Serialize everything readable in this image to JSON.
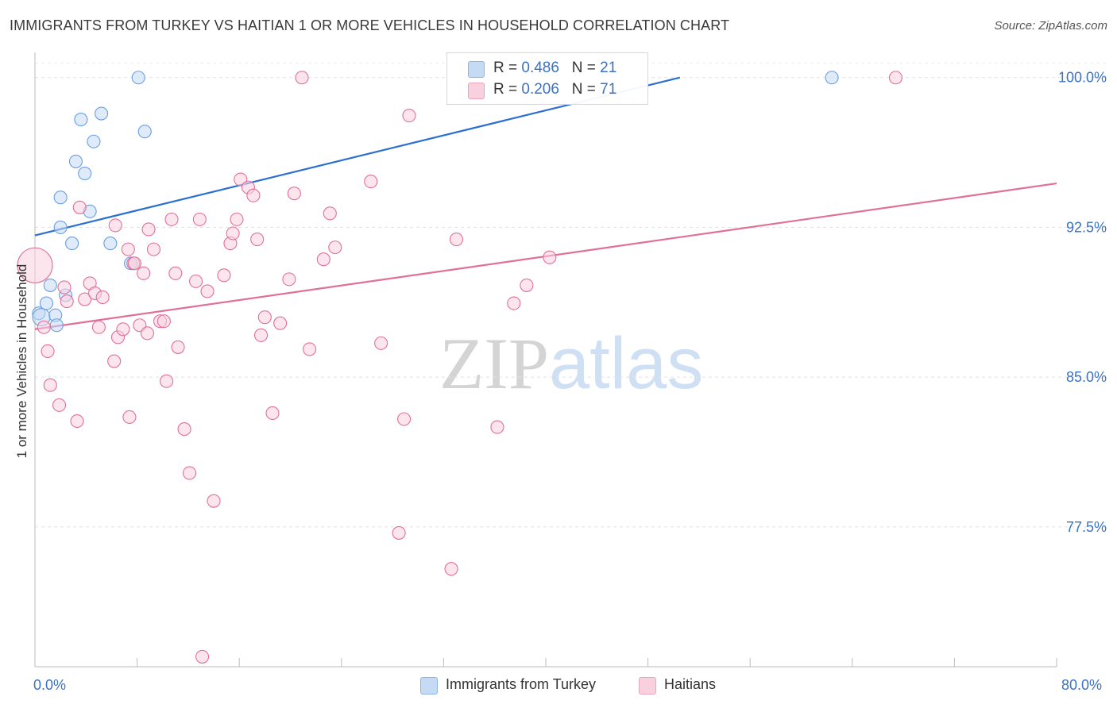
{
  "title": "IMMIGRANTS FROM TURKEY VS HAITIAN 1 OR MORE VEHICLES IN HOUSEHOLD CORRELATION CHART",
  "source": "Source: ZipAtlas.com",
  "watermark": {
    "zip": "ZIP",
    "atlas": "atlas"
  },
  "legend": {
    "rows": [
      {
        "r_label": "R = ",
        "r_value": "0.486",
        "n_label": "N = ",
        "n_value": "21",
        "color": "#a9c8f0"
      },
      {
        "r_label": "R = ",
        "r_value": "0.206",
        "n_label": "N = ",
        "n_value": "71",
        "color": "#f7b8cc"
      }
    ]
  },
  "bottom_legend": {
    "items": [
      {
        "label": "Immigrants from Turkey",
        "color": "#a9c8f0"
      },
      {
        "label": "Haitians",
        "color": "#f7b8cc"
      }
    ]
  },
  "chart_data": {
    "type": "scatter",
    "title": "IMMIGRANTS FROM TURKEY VS HAITIAN 1 OR MORE VEHICLES IN HOUSEHOLD CORRELATION CHART",
    "xlabel": "",
    "ylabel": "1 or more Vehicles in Household",
    "xlim": [
      0,
      80
    ],
    "ylim": [
      70.5,
      101.5
    ],
    "x_tick_labels": [
      "0.0%",
      "80.0%"
    ],
    "y_ticks": [
      77.5,
      85.0,
      92.5,
      100.0
    ],
    "y_tick_labels": [
      "77.5%",
      "85.0%",
      "92.5%",
      "100.0%"
    ],
    "grid": true,
    "legend_position": "top-center",
    "series": [
      {
        "name": "Immigrants from Turkey",
        "color": "#6a9fe0",
        "fill": "#c5daf5",
        "r": 0.486,
        "n": 21,
        "trend": {
          "x": [
            0.0,
            50.5
          ],
          "y": [
            92.1,
            100.0
          ]
        },
        "points": [
          [
            0.3,
            88.2
          ],
          [
            0.5,
            88.0
          ],
          [
            0.9,
            88.7
          ],
          [
            1.2,
            89.6
          ],
          [
            1.6,
            88.1
          ],
          [
            1.7,
            87.6
          ],
          [
            2.0,
            92.5
          ],
          [
            2.0,
            94.0
          ],
          [
            2.4,
            89.1
          ],
          [
            2.9,
            91.7
          ],
          [
            3.2,
            95.8
          ],
          [
            3.6,
            97.9
          ],
          [
            3.9,
            95.2
          ],
          [
            4.3,
            93.3
          ],
          [
            4.6,
            96.8
          ],
          [
            5.2,
            98.2
          ],
          [
            5.9,
            91.7
          ],
          [
            7.5,
            90.7
          ],
          [
            8.1,
            100.0
          ],
          [
            8.6,
            97.3
          ],
          [
            62.4,
            100.0
          ]
        ]
      },
      {
        "name": "Haitians",
        "color": "#e0709a",
        "fill": "#f9d0de",
        "r": 0.206,
        "n": 71,
        "trend": {
          "x": [
            0.0,
            80.0
          ],
          "y": [
            87.4,
            94.7
          ]
        },
        "points": [
          [
            0.0,
            90.6
          ],
          [
            0.7,
            87.5
          ],
          [
            1.0,
            86.3
          ],
          [
            1.2,
            84.6
          ],
          [
            1.9,
            83.6
          ],
          [
            2.3,
            89.5
          ],
          [
            2.5,
            88.8
          ],
          [
            3.3,
            82.8
          ],
          [
            3.5,
            93.5
          ],
          [
            3.9,
            88.9
          ],
          [
            4.3,
            89.7
          ],
          [
            4.7,
            89.2
          ],
          [
            5.0,
            87.5
          ],
          [
            5.3,
            89.0
          ],
          [
            6.2,
            85.8
          ],
          [
            6.3,
            92.6
          ],
          [
            6.5,
            87.0
          ],
          [
            6.9,
            87.4
          ],
          [
            7.3,
            91.4
          ],
          [
            7.4,
            83.0
          ],
          [
            7.7,
            90.7
          ],
          [
            8.2,
            87.6
          ],
          [
            8.5,
            90.2
          ],
          [
            8.8,
            87.2
          ],
          [
            8.9,
            92.4
          ],
          [
            9.3,
            91.4
          ],
          [
            9.8,
            87.8
          ],
          [
            10.1,
            87.8
          ],
          [
            10.3,
            84.8
          ],
          [
            10.7,
            92.9
          ],
          [
            11.0,
            90.2
          ],
          [
            11.2,
            86.5
          ],
          [
            11.7,
            82.4
          ],
          [
            12.1,
            80.2
          ],
          [
            12.6,
            89.8
          ],
          [
            12.9,
            92.9
          ],
          [
            13.5,
            89.3
          ],
          [
            14.0,
            78.8
          ],
          [
            14.8,
            90.1
          ],
          [
            15.3,
            91.7
          ],
          [
            15.5,
            92.2
          ],
          [
            15.8,
            92.9
          ],
          [
            16.1,
            94.9
          ],
          [
            16.7,
            94.5
          ],
          [
            17.1,
            94.1
          ],
          [
            17.4,
            91.9
          ],
          [
            17.7,
            87.1
          ],
          [
            18.0,
            88.0
          ],
          [
            18.6,
            83.2
          ],
          [
            19.2,
            87.7
          ],
          [
            19.9,
            89.9
          ],
          [
            20.3,
            94.2
          ],
          [
            20.9,
            100.0
          ],
          [
            21.5,
            86.4
          ],
          [
            22.6,
            90.9
          ],
          [
            23.1,
            93.2
          ],
          [
            23.5,
            91.5
          ],
          [
            26.3,
            94.8
          ],
          [
            27.1,
            86.7
          ],
          [
            28.5,
            77.2
          ],
          [
            28.9,
            82.9
          ],
          [
            29.3,
            98.1
          ],
          [
            32.6,
            75.4
          ],
          [
            33.0,
            91.9
          ],
          [
            36.2,
            82.5
          ],
          [
            37.5,
            88.7
          ],
          [
            38.5,
            89.6
          ],
          [
            40.3,
            91.0
          ],
          [
            67.4,
            100.0
          ],
          [
            13.1,
            71.0
          ],
          [
            7.8,
            90.7
          ]
        ]
      }
    ]
  }
}
